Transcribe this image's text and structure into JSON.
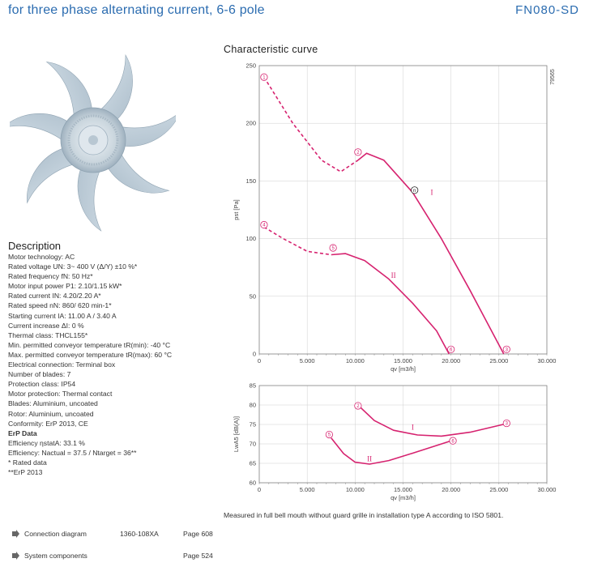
{
  "header": {
    "title": "for three phase alternating current, 6-6 pole",
    "model": "FN080-SD"
  },
  "description": {
    "title": "Description",
    "lines": [
      {
        "text": "Motor technology: AC",
        "bold": false
      },
      {
        "text": "Rated voltage UN: 3~ 400 V (Δ/Y) ±10 %*",
        "bold": false
      },
      {
        "text": "Rated frequency fN: 50 Hz*",
        "bold": false
      },
      {
        "text": "Motor input power P1: 2.10/1.15 kW*",
        "bold": false
      },
      {
        "text": "Rated current IN: 4.20/2.20 A*",
        "bold": false
      },
      {
        "text": "Rated speed nN: 860/ 620 min-1*",
        "bold": false
      },
      {
        "text": "Starting current IA: 11.00 A / 3.40 A",
        "bold": false
      },
      {
        "text": "Current increase ΔI: 0 %",
        "bold": false
      },
      {
        "text": "Thermal class: THCL155*",
        "bold": false
      },
      {
        "text": "Min. permitted conveyor temperature tR(min): -40 °C",
        "bold": false
      },
      {
        "text": "Max. permitted conveyor temperature tR(max): 60 °C",
        "bold": false
      },
      {
        "text": "Electrical connection: Terminal box",
        "bold": false
      },
      {
        "text": "Number of blades: 7",
        "bold": false
      },
      {
        "text": "Protection class: IP54",
        "bold": false
      },
      {
        "text": "Motor protection: Thermal contact",
        "bold": false
      },
      {
        "text": "Blades: Aluminium, uncoated",
        "bold": false
      },
      {
        "text": "Rotor: Aluminium, uncoated",
        "bold": false
      },
      {
        "text": "Conformity: ErP 2013, CE",
        "bold": false
      },
      {
        "text": "ErP Data",
        "bold": true
      },
      {
        "text": "Efficiency ηstatA: 33.1 %",
        "bold": false
      },
      {
        "text": "Efficiency: Nactual = 37.5 / Ntarget = 36**",
        "bold": false
      },
      {
        "text": "* Rated data",
        "bold": false
      },
      {
        "text": "**ErP 2013",
        "bold": false
      }
    ]
  },
  "characteristic_title": "Characteristic curve",
  "figure_id": "79565",
  "footnote": "Measured in full bell mouth without guard grille in installation type A according to ISO 5801.",
  "links": [
    {
      "label": "Connection diagram",
      "ref": "1360-108XA",
      "page": "Page 608"
    },
    {
      "label": "System components",
      "ref": "",
      "page": "Page 524"
    }
  ],
  "chart_data": [
    {
      "type": "line",
      "title": "Characteristic curve",
      "xlabel": "qv [m3/h]",
      "ylabel": "pst [Pa]",
      "xlim": [
        0,
        30000
      ],
      "ylim": [
        0,
        250
      ],
      "x_ticks": [
        0,
        5000,
        10000,
        15000,
        20000,
        25000,
        30000
      ],
      "x_tick_labels": [
        "0",
        "5.000",
        "10.000",
        "15.000",
        "20.000",
        "25.000",
        "30.000"
      ],
      "y_ticks": [
        0,
        50,
        100,
        150,
        200,
        250
      ],
      "grid": true,
      "color": "#d6226f",
      "series": [
        {
          "name": "I",
          "style": "dashed",
          "x": [
            500,
            3500,
            6500,
            8500,
            10300
          ],
          "y": [
            240,
            200,
            168,
            158,
            168
          ]
        },
        {
          "name": "I",
          "style": "solid",
          "x": [
            10300,
            11200,
            13000,
            16000,
            19000,
            22000,
            25500
          ],
          "y": [
            168,
            174,
            168,
            140,
            100,
            55,
            0
          ]
        },
        {
          "name": "II",
          "style": "dashed",
          "x": [
            500,
            2500,
            5000,
            7500
          ],
          "y": [
            110,
            100,
            89,
            86
          ]
        },
        {
          "name": "II",
          "style": "solid",
          "x": [
            7500,
            9000,
            11000,
            13500,
            16000,
            18500,
            19800
          ],
          "y": [
            86,
            87,
            81,
            65,
            44,
            20,
            0
          ]
        }
      ],
      "markers": [
        {
          "label": "1",
          "x": 500,
          "y": 240
        },
        {
          "label": "2",
          "x": 10300,
          "y": 175
        },
        {
          "label": "3",
          "x": 25800,
          "y": 4
        },
        {
          "label": "4",
          "x": 500,
          "y": 112
        },
        {
          "label": "5",
          "x": 7700,
          "y": 92
        },
        {
          "label": "6",
          "x": 20000,
          "y": 4
        },
        {
          "label": "n",
          "x": 16200,
          "y": 142
        }
      ],
      "curve_labels": [
        {
          "label": "I",
          "x": 18000,
          "y": 138
        },
        {
          "label": "II",
          "x": 14000,
          "y": 66
        }
      ]
    },
    {
      "type": "line",
      "xlabel": "qv [m3/h]",
      "ylabel": "LwA5 [dB(A)]",
      "xlim": [
        0,
        30000
      ],
      "ylim": [
        60,
        85
      ],
      "x_ticks": [
        0,
        5000,
        10000,
        15000,
        20000,
        25000,
        30000
      ],
      "x_tick_labels": [
        "0",
        "5.000",
        "10.000",
        "15.000",
        "20.000",
        "25.000",
        "30.000"
      ],
      "y_ticks": [
        60,
        65,
        70,
        75,
        80,
        85
      ],
      "grid": true,
      "color": "#d6226f",
      "series": [
        {
          "name": "I",
          "style": "solid",
          "x": [
            10500,
            12000,
            14000,
            16500,
            19000,
            22000,
            25800
          ],
          "y": [
            79.5,
            76,
            73.5,
            72.3,
            72,
            73,
            75.2
          ]
        },
        {
          "name": "II",
          "style": "solid",
          "x": [
            7500,
            8800,
            10000,
            11500,
            13500,
            16000,
            20000
          ],
          "y": [
            71.5,
            67.5,
            65.3,
            64.8,
            65.7,
            67.6,
            70.8
          ]
        }
      ],
      "markers": [
        {
          "label": "2",
          "x": 10300,
          "y": 79.8
        },
        {
          "label": "3",
          "x": 25800,
          "y": 75.3
        },
        {
          "label": "5",
          "x": 7300,
          "y": 72.4
        },
        {
          "label": "6",
          "x": 20200,
          "y": 70.8
        }
      ],
      "curve_labels": [
        {
          "label": "I",
          "x": 16000,
          "y": 73.6
        },
        {
          "label": "II",
          "x": 11500,
          "y": 65.5
        }
      ]
    }
  ]
}
